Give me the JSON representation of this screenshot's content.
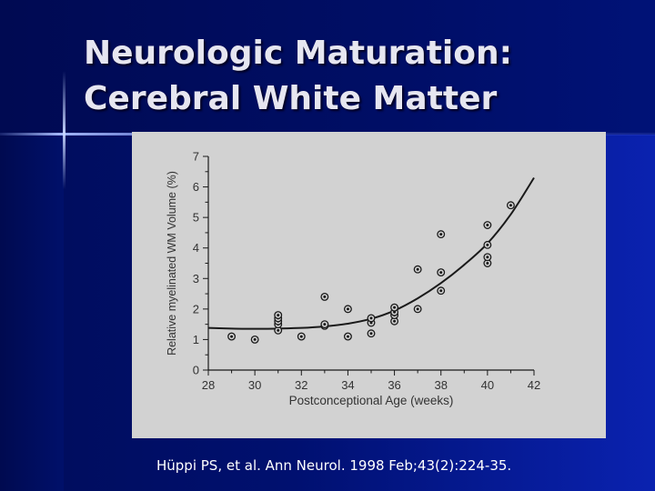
{
  "slide": {
    "title_line1": "Neurologic Maturation:",
    "title_line2": "Cerebral White Matter",
    "citation": "Hüppi PS, et al. Ann Neurol. 1998 Feb;43(2):224-35."
  },
  "colors": {
    "background": "#001070",
    "title_text": "#e6e6f0",
    "panel": "#d2d2d2",
    "ink": "#1a1a1a"
  },
  "chart_data": {
    "type": "scatter",
    "xlabel": "Postconceptional Age (weeks)",
    "ylabel": "Relative myelinated WM Volume (%)",
    "xlim": [
      28,
      42
    ],
    "ylim": [
      0,
      7
    ],
    "x_ticks": [
      28,
      30,
      32,
      34,
      36,
      38,
      40,
      42
    ],
    "y_ticks": [
      0,
      1,
      2,
      3,
      4,
      5,
      6,
      7
    ],
    "grid": false,
    "legend": "none",
    "points": [
      {
        "x": 29,
        "y": 1.1
      },
      {
        "x": 30,
        "y": 1.0
      },
      {
        "x": 31,
        "y": 1.3
      },
      {
        "x": 31,
        "y": 1.5
      },
      {
        "x": 31,
        "y": 1.6
      },
      {
        "x": 31,
        "y": 1.7
      },
      {
        "x": 31,
        "y": 1.8
      },
      {
        "x": 32,
        "y": 1.1
      },
      {
        "x": 33,
        "y": 1.45
      },
      {
        "x": 33,
        "y": 1.5
      },
      {
        "x": 33,
        "y": 2.4
      },
      {
        "x": 34,
        "y": 1.1
      },
      {
        "x": 34,
        "y": 2.0
      },
      {
        "x": 35,
        "y": 1.2
      },
      {
        "x": 35,
        "y": 1.55
      },
      {
        "x": 35,
        "y": 1.7
      },
      {
        "x": 36,
        "y": 1.6
      },
      {
        "x": 36,
        "y": 1.8
      },
      {
        "x": 36,
        "y": 1.9
      },
      {
        "x": 36,
        "y": 2.05
      },
      {
        "x": 37,
        "y": 2.0
      },
      {
        "x": 37,
        "y": 3.3
      },
      {
        "x": 38,
        "y": 2.6
      },
      {
        "x": 38,
        "y": 3.2
      },
      {
        "x": 38,
        "y": 4.45
      },
      {
        "x": 40,
        "y": 3.5
      },
      {
        "x": 40,
        "y": 3.7
      },
      {
        "x": 40,
        "y": 4.1
      },
      {
        "x": 40,
        "y": 4.75
      },
      {
        "x": 41,
        "y": 5.4
      }
    ],
    "fit_curve": {
      "x": [
        28,
        29,
        30,
        31,
        32,
        33,
        34,
        35,
        36,
        37,
        38,
        39,
        40,
        41,
        42
      ],
      "y": [
        1.38,
        1.36,
        1.35,
        1.36,
        1.38,
        1.43,
        1.52,
        1.68,
        1.95,
        2.35,
        2.85,
        3.45,
        4.15,
        5.1,
        6.3
      ]
    }
  }
}
